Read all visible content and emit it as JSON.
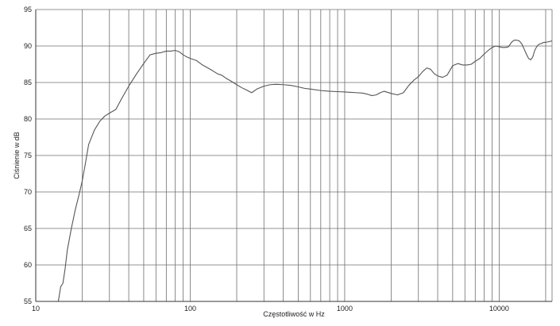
{
  "chart_data": {
    "type": "line",
    "title": "",
    "xlabel": "Częstotliwość w Hz",
    "ylabel": "Ciśnienie w dB",
    "x_scale": "log",
    "xlim": [
      10,
      22000
    ],
    "ylim": [
      55,
      95
    ],
    "x_ticks": [
      10,
      100,
      1000,
      10000
    ],
    "x_tick_labels": [
      "10",
      "100",
      "1000",
      "10000"
    ],
    "y_ticks": [
      55,
      60,
      65,
      70,
      75,
      80,
      85,
      90,
      95
    ],
    "y_tick_labels": [
      "55",
      "60",
      "65",
      "70",
      "75",
      "80",
      "85",
      "90",
      "95"
    ],
    "grid": true,
    "legend": "none",
    "line_color": "#555555",
    "series": [
      {
        "x": [
          14,
          14.5,
          15,
          15.5,
          16,
          17,
          18,
          19,
          20,
          21,
          22,
          24,
          26,
          28,
          30,
          33,
          36,
          40,
          45,
          50,
          55,
          60,
          65,
          70,
          75,
          80,
          85,
          90,
          95,
          100,
          110,
          120,
          130,
          140,
          150,
          160,
          170,
          180,
          190,
          200,
          215,
          230,
          250,
          270,
          300,
          330,
          360,
          400,
          450,
          500,
          550,
          600,
          700,
          800,
          900,
          1000,
          1100,
          1200,
          1300,
          1400,
          1500,
          1600,
          1700,
          1800,
          2000,
          2200,
          2400,
          2600,
          2800,
          3000,
          3200,
          3400,
          3600,
          3800,
          4000,
          4300,
          4600,
          5000,
          5400,
          5800,
          6200,
          6600,
          7000,
          7500,
          8000,
          8500,
          9000,
          9500,
          10000,
          10500,
          11000,
          11500,
          12000,
          12500,
          13000,
          13500,
          14000,
          14500,
          15000,
          15500,
          16000,
          16500,
          17000,
          17500,
          18000,
          18500,
          19000,
          19500,
          20000,
          21000,
          22000
        ],
        "y": [
          55,
          57,
          57.5,
          59.5,
          62,
          65,
          67.5,
          69.5,
          71.5,
          74,
          76.5,
          78.5,
          79.7,
          80.4,
          80.8,
          81.3,
          82.8,
          84.5,
          86.2,
          87.6,
          88.8,
          89.0,
          89.1,
          89.3,
          89.3,
          89.4,
          89.2,
          88.8,
          88.5,
          88.3,
          88.0,
          87.4,
          87.0,
          86.6,
          86.2,
          86.0,
          85.6,
          85.3,
          85.0,
          84.7,
          84.3,
          84.0,
          83.6,
          84.1,
          84.5,
          84.7,
          84.75,
          84.7,
          84.6,
          84.4,
          84.2,
          84.1,
          83.9,
          83.8,
          83.75,
          83.7,
          83.65,
          83.6,
          83.55,
          83.4,
          83.2,
          83.3,
          83.6,
          83.8,
          83.5,
          83.3,
          83.6,
          84.6,
          85.3,
          85.8,
          86.5,
          87.0,
          86.8,
          86.2,
          85.9,
          85.7,
          86.0,
          87.3,
          87.6,
          87.4,
          87.4,
          87.5,
          87.9,
          88.3,
          88.9,
          89.4,
          89.8,
          90.0,
          89.9,
          89.8,
          89.8,
          89.9,
          90.5,
          90.8,
          90.8,
          90.7,
          90.3,
          89.6,
          88.9,
          88.3,
          88.1,
          88.5,
          89.4,
          89.9,
          90.2,
          90.3,
          90.4,
          90.5,
          90.5,
          90.6,
          90.7
        ]
      }
    ]
  }
}
